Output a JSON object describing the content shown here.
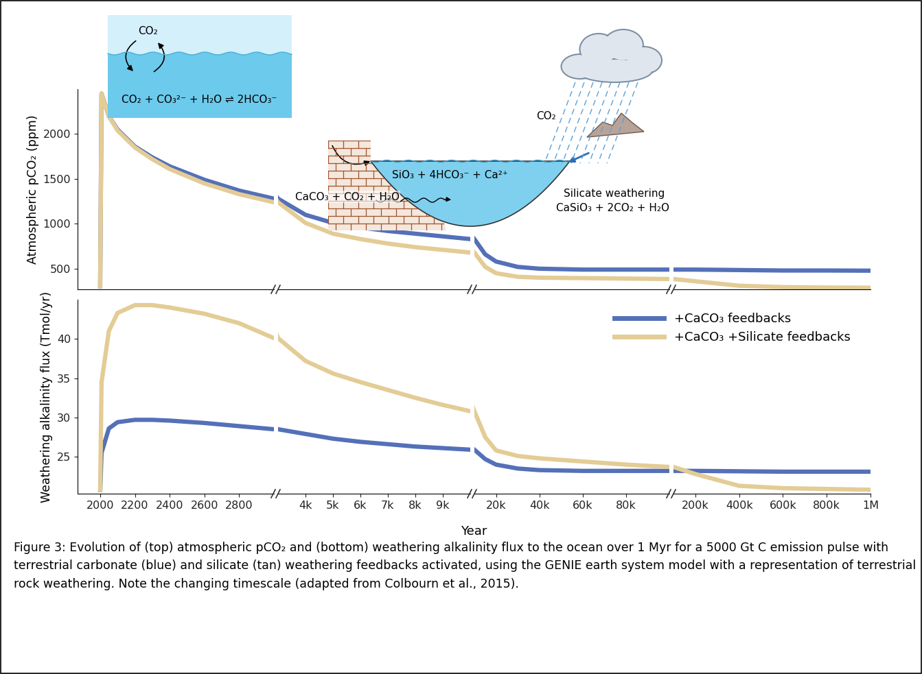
{
  "chart_data": [
    {
      "type": "line",
      "ylabel": "Atmospheric pCO₂ (ppm)",
      "ylim": [
        270,
        2500
      ],
      "yticks": [
        500,
        1000,
        1500,
        2000
      ],
      "tick_labels": "y",
      "x": [
        2000,
        2008,
        2050,
        2100,
        2200,
        2300,
        2400,
        2600,
        2800,
        3000,
        4000,
        5000,
        6000,
        7000,
        8000,
        9000,
        10000,
        15000,
        20000,
        30000,
        40000,
        60000,
        80000,
        100000,
        200000,
        400000,
        600000,
        800000,
        1000000
      ],
      "series": [
        {
          "name": "+CaCO₃ feedbacks",
          "color": "#5470b8",
          "values": [
            280,
            2450,
            2200,
            2050,
            1860,
            1740,
            1640,
            1490,
            1370,
            1280,
            1100,
            1010,
            960,
            920,
            890,
            860,
            830,
            660,
            580,
            520,
            500,
            490,
            490,
            490,
            490,
            485,
            480,
            480,
            478
          ]
        },
        {
          "name": "+CaCO₃ +Silicate feedbacks",
          "color": "#e3cc95",
          "values": [
            280,
            2450,
            2200,
            2040,
            1850,
            1720,
            1610,
            1450,
            1330,
            1240,
            1010,
            890,
            830,
            780,
            740,
            710,
            680,
            520,
            450,
            410,
            400,
            395,
            390,
            385,
            360,
            310,
            295,
            290,
            288
          ]
        }
      ]
    },
    {
      "type": "line",
      "ylabel": "Weathering alkalinity flux (Tmol/yr)",
      "xlabel": "Year",
      "ylim": [
        20.3,
        45
      ],
      "yticks": [
        25,
        30,
        35,
        40
      ],
      "legend": "upper right",
      "x": [
        2000,
        2008,
        2050,
        2100,
        2200,
        2300,
        2400,
        2600,
        2800,
        3000,
        4000,
        5000,
        6000,
        7000,
        8000,
        9000,
        10000,
        15000,
        20000,
        30000,
        40000,
        60000,
        80000,
        100000,
        200000,
        400000,
        600000,
        800000,
        1000000
      ],
      "series": [
        {
          "name": "+CaCO₃ feedbacks",
          "color": "#5470b8",
          "values": [
            20.5,
            25.5,
            28.6,
            29.4,
            29.7,
            29.7,
            29.6,
            29.3,
            28.9,
            28.5,
            27.9,
            27.3,
            26.9,
            26.6,
            26.3,
            26.1,
            25.9,
            24.7,
            24.0,
            23.5,
            23.3,
            23.2,
            23.2,
            23.2,
            23.2,
            23.15,
            23.1,
            23.1,
            23.1
          ]
        },
        {
          "name": "+CaCO₃ +Silicate feedbacks",
          "color": "#e3cc95",
          "values": [
            20.5,
            34.5,
            41.0,
            43.3,
            44.3,
            44.3,
            44.0,
            43.2,
            42.0,
            40.1,
            37.2,
            35.6,
            34.5,
            33.5,
            32.5,
            31.6,
            30.8,
            27.5,
            25.8,
            25.1,
            24.8,
            24.4,
            24.0,
            23.7,
            22.8,
            21.3,
            21.0,
            20.9,
            20.8
          ]
        }
      ]
    }
  ],
  "x_segments": [
    {
      "xlim": [
        1870,
        3000
      ],
      "xticks": [
        2000,
        2200,
        2400,
        2600,
        2800
      ]
    },
    {
      "xlim": [
        3000,
        10000
      ],
      "xticks": [
        {
          "value": 4000,
          "label": "4k"
        },
        {
          "value": 5000,
          "label": "5k"
        },
        {
          "value": 6000,
          "label": "6k"
        },
        {
          "value": 7000,
          "label": "7k"
        },
        {
          "value": 8000,
          "label": "8k"
        },
        {
          "value": 9000,
          "label": "9k"
        }
      ]
    },
    {
      "xlim": [
        10000,
        100000
      ],
      "xticks": [
        {
          "value": 20000,
          "label": "20k"
        },
        {
          "value": 40000,
          "label": "40k"
        },
        {
          "value": 60000,
          "label": "60k"
        },
        {
          "value": 80000,
          "label": "80k"
        }
      ]
    },
    {
      "xlim": [
        100000,
        1000000
      ],
      "xticks": [
        {
          "value": 200000,
          "label": "200k"
        },
        {
          "value": 400000,
          "label": "400k"
        },
        {
          "value": 600000,
          "label": "600k"
        },
        {
          "value": 800000,
          "label": "800k"
        },
        {
          "value": 1000000,
          "label": "1M"
        }
      ]
    }
  ],
  "diagram": {
    "ocean_exchange": {
      "gas": "CO₂",
      "reaction": "CO₂ + CO₃²⁻ + H₂O ⇌ 2HCO₃⁻"
    },
    "ocean": {
      "dissolved": "SiO₃ + 4HCO₃⁻ + Ca²⁺"
    },
    "carbonate_weathering": {
      "reaction": "CaCO₃ + CO₂ + H₂O"
    },
    "silicate_weathering": {
      "gas": "CO₂",
      "title": "Silicate weathering",
      "reaction": "CaSiO₃ + 2CO₂ + H₂O"
    }
  },
  "caption": "Figure 3: Evolution of (top) atmospheric pCO₂ and (bottom) weathering alkalinity flux to the ocean over 1 Myr for a 5000 Gt C emission pulse with terrestrial carbonate (blue) and silicate (tan) weathering feedbacks activated, using the GENIE earth system model with a representation of terrestrial rock weathering. Note the changing timescale (adapted from Colbourn et al., 2015)."
}
